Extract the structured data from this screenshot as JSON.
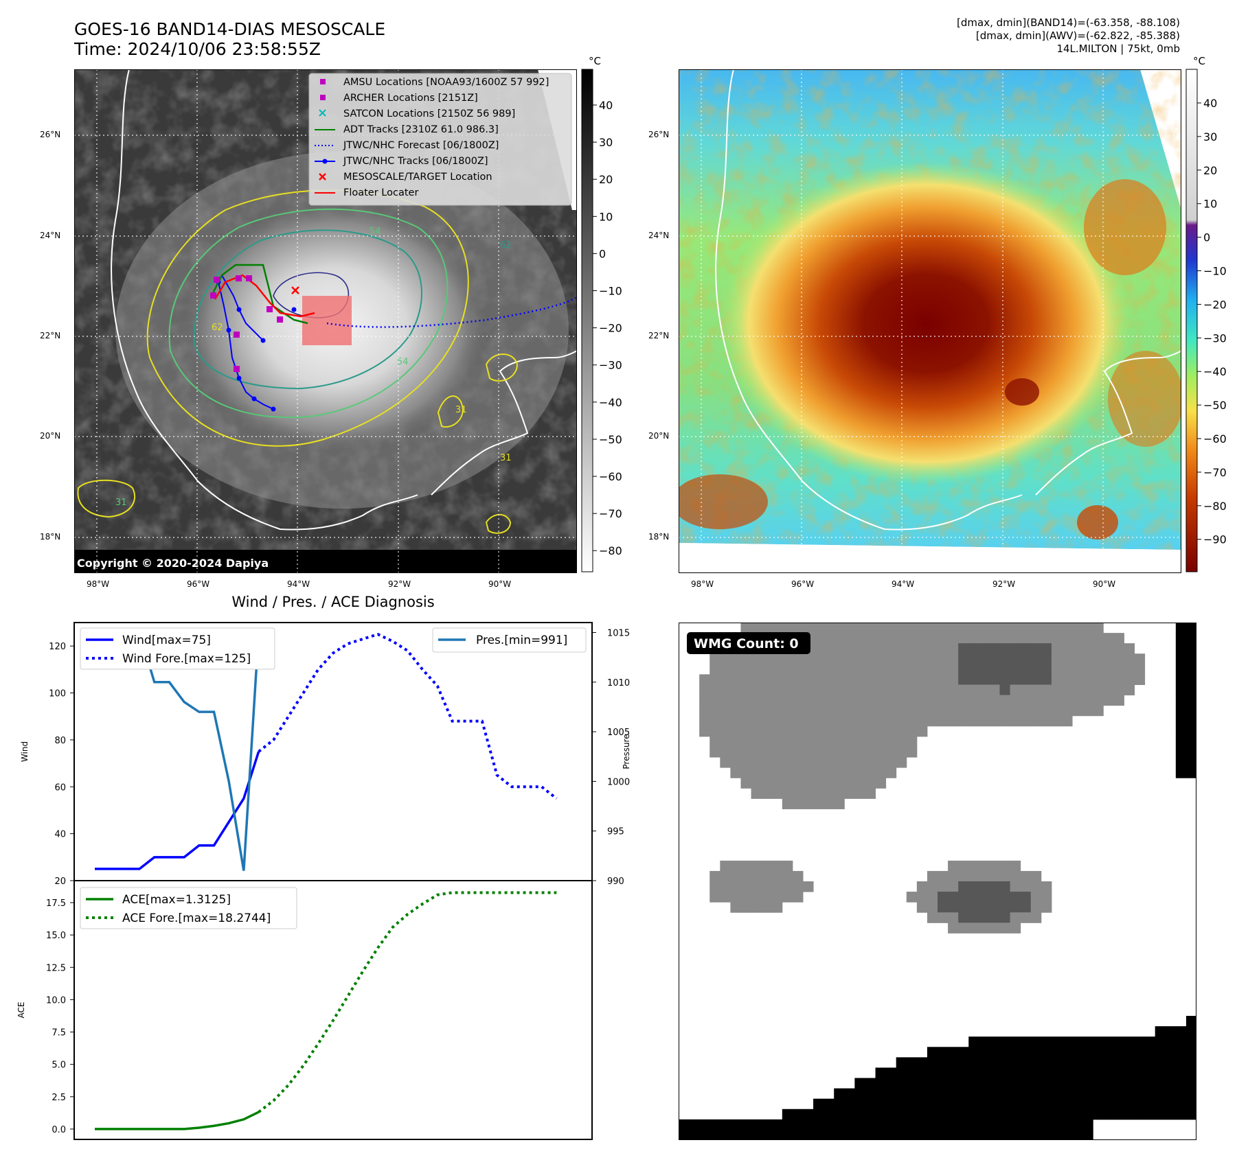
{
  "header": {
    "title_line1": "GOES-16 BAND14-DIAS MESOSCALE",
    "title_line2": "Time: 2024/10/06 23:58:55Z",
    "info_line1": "[dmax, dmin](BAND14)=(-63.358, -88.108)",
    "info_line2": "[dmax, dmin](AWV)=(-62.822, -85.388)",
    "info_line3": "14L.MILTON | 75kt, 0mb"
  },
  "map": {
    "lon_labels": [
      "98°W",
      "96°W",
      "94°W",
      "92°W",
      "90°W"
    ],
    "lat_labels": [
      "26°N",
      "24°N",
      "22°N",
      "20°N",
      "18°N"
    ],
    "copyright": "Copyright © 2020-2024 Dapiya",
    "colorbar_unit": "°C",
    "gray_ticks": [
      "40",
      "30",
      "20",
      "10",
      "0",
      "−10",
      "−20",
      "−30",
      "−40",
      "−50",
      "−60",
      "−70",
      "−80"
    ],
    "color_ticks": [
      "40",
      "30",
      "20",
      "10",
      "0",
      "−10",
      "−20",
      "−30",
      "−40",
      "−50",
      "−60",
      "−70",
      "−80",
      "−90"
    ],
    "contour_labels": [
      "31",
      "54",
      "62",
      "31",
      "54",
      "62",
      "31"
    ],
    "colors": {
      "yellow": "#e8e020",
      "green": "#58c878",
      "teal": "#2a9a8a",
      "navy": "#2a2a88"
    },
    "legend": [
      {
        "label": "AMSU Locations [NOAA93/1600Z 57 992]",
        "marker": "square",
        "color": "#c000c0"
      },
      {
        "label": "ARCHER Locations [2151Z]",
        "marker": "square",
        "color": "#c000c0"
      },
      {
        "label": "SATCON Locations [2150Z 56 989]",
        "marker": "x",
        "color": "#00b8b8"
      },
      {
        "label": "ADT Tracks [2310Z 61.0 986.3]",
        "marker": "line",
        "color": "#008000"
      },
      {
        "label": "JTWC/NHC Forecast [06/1800Z]",
        "marker": "dotted",
        "color": "#0000ff"
      },
      {
        "label": "JTWC/NHC Tracks [06/1800Z]",
        "marker": "line-dot",
        "color": "#0000ff"
      },
      {
        "label": "MESOSCALE/TARGET Location",
        "marker": "x",
        "color": "#ff0000"
      },
      {
        "label": "Floater Locater",
        "marker": "line",
        "color": "#ff0000"
      }
    ]
  },
  "wmg": {
    "label": "WMG Count: 0"
  },
  "chart_data": [
    {
      "type": "line",
      "title": "Wind / Pres. / ACE Diagnosis",
      "ylabel": "Wind",
      "y2label": "Pressure",
      "ylim": [
        20,
        130
      ],
      "y2lim": [
        990,
        1016
      ],
      "yticks": [
        "20",
        "40",
        "60",
        "80",
        "100",
        "120"
      ],
      "y2ticks": [
        "990",
        "995",
        "1000",
        "1005",
        "1010",
        "1015"
      ],
      "series": [
        {
          "name": "Wind[max=75]",
          "axis": "left",
          "color": "#0000ff",
          "style": "solid",
          "values": [
            25,
            25,
            25,
            25,
            30,
            30,
            30,
            35,
            35,
            45,
            55,
            75
          ]
        },
        {
          "name": "Wind Fore.[max=125]",
          "axis": "left",
          "color": "#0000ff",
          "style": "dotted",
          "values": [
            75,
            80,
            90,
            100,
            110,
            117,
            121,
            123,
            125,
            122,
            118,
            110,
            103,
            88,
            88,
            88,
            65,
            60,
            60,
            60,
            55
          ]
        },
        {
          "name": "Pres.[min=991]",
          "axis": "right",
          "color": "#1f77b4",
          "style": "solid",
          "values": [
            1015,
            1015,
            1015,
            1015,
            1010,
            1010,
            1008,
            1007,
            1007,
            1000,
            991,
            1015
          ]
        }
      ],
      "legend_left": [
        "Wind[max=75]",
        "Wind Fore.[max=125]"
      ],
      "legend_right": [
        "Pres.[min=991]"
      ]
    },
    {
      "type": "line",
      "ylabel": "ACE",
      "ylim": [
        -0.8,
        19.2
      ],
      "yticks": [
        "0.0",
        "2.5",
        "5.0",
        "7.5",
        "10.0",
        "12.5",
        "15.0",
        "17.5"
      ],
      "series": [
        {
          "name": "ACE[max=1.3125]",
          "color": "#008000",
          "style": "solid",
          "values": [
            0,
            0,
            0,
            0,
            0,
            0,
            0,
            0.1,
            0.25,
            0.45,
            0.75,
            1.3125
          ]
        },
        {
          "name": "ACE Fore.[max=18.2744]",
          "color": "#008000",
          "style": "dotted",
          "values": [
            1.3125,
            2.2,
            3.4,
            4.9,
            6.6,
            8.4,
            10.3,
            12.2,
            14.0,
            15.6,
            16.6,
            17.4,
            18.1,
            18.2744,
            18.2744,
            18.2744,
            18.2744,
            18.2744,
            18.2744,
            18.2744,
            18.2744
          ]
        }
      ]
    }
  ]
}
